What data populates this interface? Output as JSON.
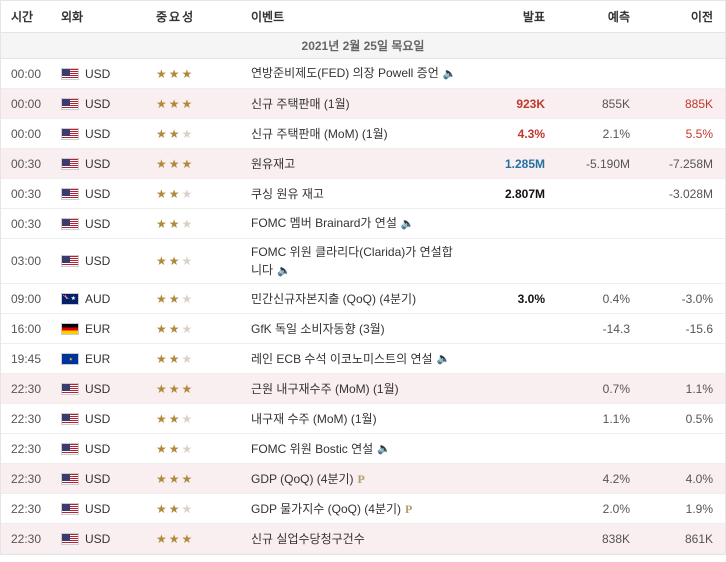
{
  "header": {
    "time": "시간",
    "currency": "외화",
    "importance": "중요성",
    "event": "이벤트",
    "actual": "발표",
    "forecast": "예측",
    "previous": "이전"
  },
  "dateBar": "2021년 2월 25일 목요일",
  "rows": [
    {
      "time": "00:00",
      "flag": "us",
      "cur": "USD",
      "stars": 3,
      "event": "연방준비제도(FED) 의장 Powell 증언",
      "speaker": true,
      "actual": "",
      "actualClass": "",
      "forecast": "",
      "previous": "",
      "prevClass": "",
      "alt": false,
      "ptag": false
    },
    {
      "time": "00:00",
      "flag": "us",
      "cur": "USD",
      "stars": 3,
      "event": "신규 주택판매 (1월)",
      "speaker": false,
      "actual": "923K",
      "actualClass": "act-red",
      "forecast": "855K",
      "previous": "885K",
      "prevClass": "prev-red",
      "alt": true,
      "ptag": false
    },
    {
      "time": "00:00",
      "flag": "us",
      "cur": "USD",
      "stars": 2,
      "event": "신규 주택판매 (MoM) (1월)",
      "speaker": false,
      "actual": "4.3%",
      "actualClass": "act-red",
      "forecast": "2.1%",
      "previous": "5.5%",
      "prevClass": "prev-red",
      "alt": false,
      "ptag": false
    },
    {
      "time": "00:30",
      "flag": "us",
      "cur": "USD",
      "stars": 3,
      "event": "원유재고",
      "speaker": false,
      "actual": "1.285M",
      "actualClass": "act-blue",
      "forecast": "-5.190M",
      "previous": "-7.258M",
      "prevClass": "",
      "alt": true,
      "ptag": false
    },
    {
      "time": "00:30",
      "flag": "us",
      "cur": "USD",
      "stars": 2,
      "event": "쿠싱 원유 재고",
      "speaker": false,
      "actual": "2.807M",
      "actualClass": "act-black",
      "forecast": "",
      "previous": "-3.028M",
      "prevClass": "",
      "alt": false,
      "ptag": false
    },
    {
      "time": "00:30",
      "flag": "us",
      "cur": "USD",
      "stars": 2,
      "event": "FOMC 멤버 Brainard가 연설",
      "speaker": true,
      "actual": "",
      "actualClass": "",
      "forecast": "",
      "previous": "",
      "prevClass": "",
      "alt": false,
      "ptag": false
    },
    {
      "time": "03:00",
      "flag": "us",
      "cur": "USD",
      "stars": 2,
      "event": "FOMC 위원 클라리다(Clarida)가 연설합니다",
      "speaker": true,
      "actual": "",
      "actualClass": "",
      "forecast": "",
      "previous": "",
      "prevClass": "",
      "alt": false,
      "ptag": false
    },
    {
      "time": "09:00",
      "flag": "au",
      "cur": "AUD",
      "stars": 2,
      "event": "민간신규자본지출 (QoQ) (4분기)",
      "speaker": false,
      "actual": "3.0%",
      "actualClass": "act-black",
      "forecast": "0.4%",
      "previous": "-3.0%",
      "prevClass": "",
      "alt": false,
      "ptag": false
    },
    {
      "time": "16:00",
      "flag": "de",
      "cur": "EUR",
      "stars": 2,
      "event": "GfK 독일 소비자동향 (3월)",
      "speaker": false,
      "actual": "",
      "actualClass": "",
      "forecast": "-14.3",
      "previous": "-15.6",
      "prevClass": "",
      "alt": false,
      "ptag": false
    },
    {
      "time": "19:45",
      "flag": "eu",
      "cur": "EUR",
      "stars": 2,
      "event": "레인 ECB 수석 이코노미스트의 연설",
      "speaker": true,
      "actual": "",
      "actualClass": "",
      "forecast": "",
      "previous": "",
      "prevClass": "",
      "alt": false,
      "ptag": false
    },
    {
      "time": "22:30",
      "flag": "us",
      "cur": "USD",
      "stars": 3,
      "event": "근원 내구재수주 (MoM) (1월)",
      "speaker": false,
      "actual": "",
      "actualClass": "",
      "forecast": "0.7%",
      "previous": "1.1%",
      "prevClass": "",
      "alt": true,
      "ptag": false
    },
    {
      "time": "22:30",
      "flag": "us",
      "cur": "USD",
      "stars": 2,
      "event": "내구재 수주 (MoM) (1월)",
      "speaker": false,
      "actual": "",
      "actualClass": "",
      "forecast": "1.1%",
      "previous": "0.5%",
      "prevClass": "",
      "alt": false,
      "ptag": false
    },
    {
      "time": "22:30",
      "flag": "us",
      "cur": "USD",
      "stars": 2,
      "event": "FOMC 위원 Bostic 연설",
      "speaker": true,
      "actual": "",
      "actualClass": "",
      "forecast": "",
      "previous": "",
      "prevClass": "",
      "alt": false,
      "ptag": false
    },
    {
      "time": "22:30",
      "flag": "us",
      "cur": "USD",
      "stars": 3,
      "event": "GDP (QoQ) (4분기)",
      "speaker": false,
      "actual": "",
      "actualClass": "",
      "forecast": "4.2%",
      "previous": "4.0%",
      "prevClass": "",
      "alt": true,
      "ptag": true
    },
    {
      "time": "22:30",
      "flag": "us",
      "cur": "USD",
      "stars": 2,
      "event": "GDP 물가지수 (QoQ) (4분기)",
      "speaker": false,
      "actual": "",
      "actualClass": "",
      "forecast": "2.0%",
      "previous": "1.9%",
      "prevClass": "",
      "alt": false,
      "ptag": true
    },
    {
      "time": "22:30",
      "flag": "us",
      "cur": "USD",
      "stars": 3,
      "event": "신규 실업수당청구건수",
      "speaker": false,
      "actual": "",
      "actualClass": "",
      "forecast": "838K",
      "previous": "861K",
      "prevClass": "",
      "alt": true,
      "ptag": false
    }
  ]
}
